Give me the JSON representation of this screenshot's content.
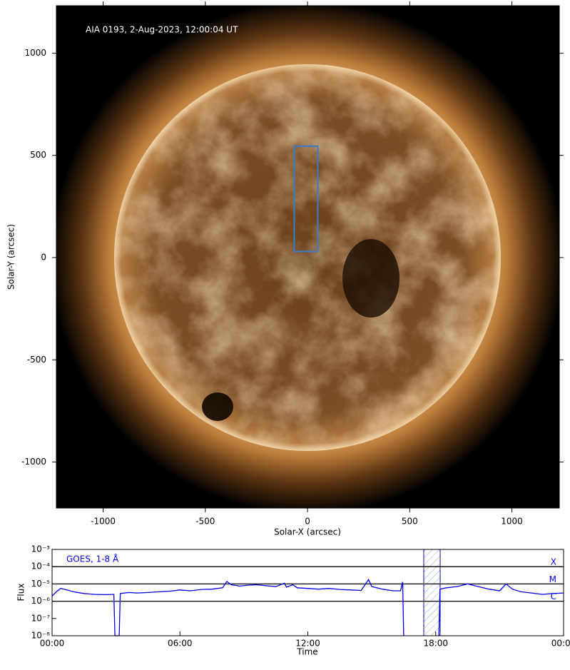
{
  "chart_data": [
    {
      "type": "image",
      "title": "AIA 0193, 2-Aug-2023, 12:00:04 UT",
      "xlabel": "Solar-X (arcsec)",
      "ylabel": "Solar-Y (arcsec)",
      "xlim": [
        -1229,
        1232
      ],
      "ylim": [
        -1225,
        1232
      ],
      "xticks": [
        -1000,
        -500,
        0,
        500,
        1000
      ],
      "yticks": [
        -1000,
        -500,
        0,
        500,
        1000
      ],
      "box": {
        "x": [
          -65,
          50
        ],
        "y": [
          30,
          545
        ],
        "color": "#3a7cc8"
      }
    },
    {
      "type": "line",
      "xlabel": "Time",
      "ylabel": "Flux",
      "log_y": true,
      "xlim": [
        0,
        24
      ],
      "ylim": [
        1e-08,
        0.001
      ],
      "xticks": [
        {
          "value": 0,
          "label": "00:00"
        },
        {
          "value": 6,
          "label": "06:00"
        },
        {
          "value": 12,
          "label": "12:00"
        },
        {
          "value": 18,
          "label": "18:00"
        },
        {
          "value": 24,
          "label": "00:00"
        }
      ],
      "yticks": [
        {
          "value": 1e-08,
          "label": "10⁻⁸"
        },
        {
          "value": 1e-07,
          "label": "10⁻⁷"
        },
        {
          "value": 1e-06,
          "label": "10⁻⁶"
        },
        {
          "value": 1e-05,
          "label": "10⁻⁵"
        },
        {
          "value": 0.0001,
          "label": "10⁻⁴"
        },
        {
          "value": 0.001,
          "label": "10⁻³"
        }
      ],
      "levels": [
        {
          "value": 0.0001,
          "label": "X"
        },
        {
          "value": 1e-05,
          "label": "M"
        },
        {
          "value": 1e-06,
          "label": "C"
        }
      ],
      "span": [
        17.44,
        18.21
      ],
      "x": [
        0,
        0.2,
        0.4,
        0.7,
        1.0,
        1.5,
        2.0,
        2.5,
        2.9,
        2.95,
        3.15,
        3.2,
        3.6,
        4.0,
        4.5,
        5.0,
        5.5,
        6.0,
        6.5,
        7.0,
        7.5,
        8.0,
        8.2,
        8.4,
        8.8,
        9.2,
        9.6,
        10.0,
        10.5,
        10.9,
        11.0,
        11.3,
        11.5,
        12.0,
        12.5,
        13.0,
        13.5,
        14.0,
        14.5,
        14.85,
        15.0,
        15.5,
        16.0,
        16.35,
        16.45,
        16.5,
        17.0,
        18.15,
        18.2,
        18.5,
        19.0,
        19.5,
        20.0,
        20.5,
        21.0,
        21.3,
        21.6,
        22.0,
        22.5,
        23.0,
        23.5,
        24.0
      ],
      "series": [
        {
          "name": "GOES, 1-8 Å",
          "color": "#0000ee",
          "values": [
            2e-06,
            3.5e-06,
            5.5e-06,
            4.5e-06,
            3.5e-06,
            2.8e-06,
            2.5e-06,
            2.4e-06,
            2.5e-06,
            1e-08,
            1e-08,
            2.8e-06,
            3.2e-06,
            3e-06,
            3.2e-06,
            3.5e-06,
            3.8e-06,
            4.5e-06,
            4e-06,
            4.8e-06,
            5e-06,
            6e-06,
            1.4e-05,
            9e-06,
            7.5e-06,
            8.5e-06,
            9e-06,
            8e-06,
            7e-06,
            1.1e-05,
            6.5e-06,
            9e-06,
            6e-06,
            5.5e-06,
            5e-06,
            5.5e-06,
            4.8e-06,
            4.5e-06,
            4.2e-06,
            1.8e-05,
            7e-06,
            5e-06,
            4e-06,
            4e-06,
            1.3e-05,
            1e-08,
            null,
            1e-08,
            5e-06,
            6e-06,
            7e-06,
            1e-05,
            7e-06,
            5e-06,
            4e-06,
            1e-05,
            5e-06,
            3.5e-06,
            3e-06,
            2.5e-06,
            2.8e-06,
            3e-06
          ]
        }
      ]
    }
  ]
}
